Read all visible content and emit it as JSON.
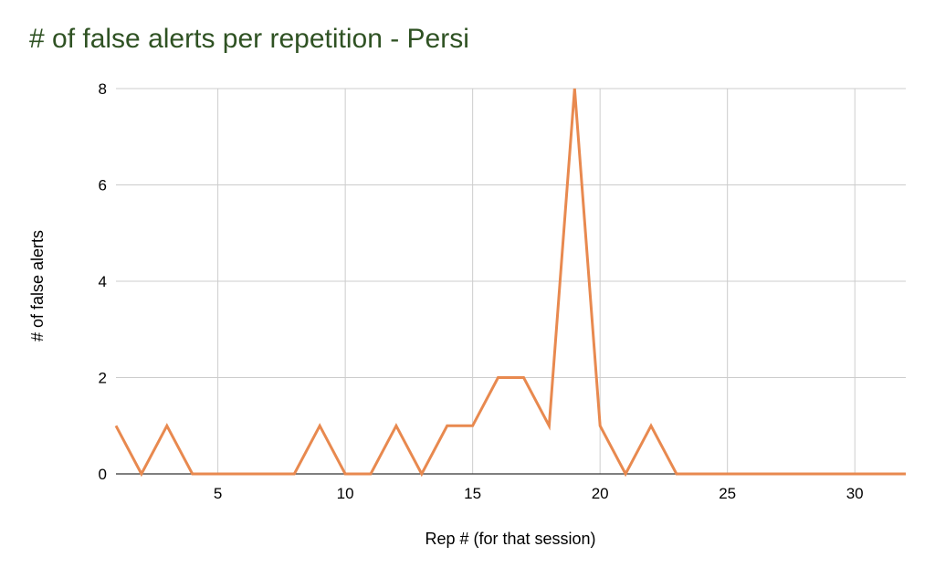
{
  "chart_data": {
    "type": "line",
    "title": "# of false alerts per repetition - Persi",
    "xlabel": "Rep # (for that session)",
    "ylabel": "# of false alerts",
    "xlim": [
      1,
      32
    ],
    "ylim": [
      0,
      8
    ],
    "x_ticks": [
      5,
      10,
      15,
      20,
      25,
      30
    ],
    "y_ticks": [
      0,
      2,
      4,
      6,
      8
    ],
    "grid": true,
    "series": [
      {
        "x": [
          1,
          2,
          3,
          4,
          5,
          6,
          7,
          8,
          9,
          10,
          11,
          12,
          13,
          14,
          15,
          16,
          17,
          18,
          19,
          20,
          21,
          22,
          23,
          24,
          25,
          26,
          27,
          28,
          29,
          30,
          31,
          32
        ],
        "values": [
          1,
          0,
          1,
          0,
          0,
          0,
          0,
          0,
          1,
          0,
          0,
          1,
          0,
          1,
          1,
          2,
          2,
          1,
          8,
          1,
          0,
          1,
          0,
          0,
          0,
          0,
          0,
          0,
          0,
          0,
          0,
          0
        ],
        "color": "#e8894f"
      }
    ]
  }
}
